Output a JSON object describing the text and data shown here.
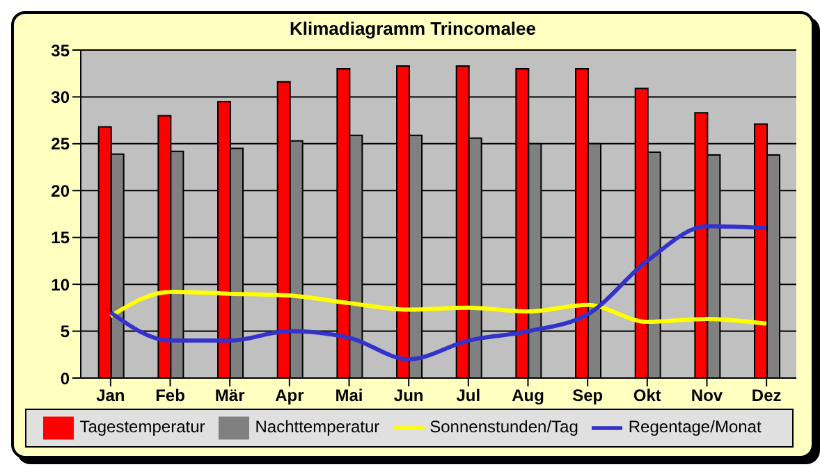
{
  "chart_data": {
    "type": "bar",
    "title": "Klimadiagramm Trincomalee",
    "categories": [
      "Jan",
      "Feb",
      "Mär",
      "Apr",
      "Mai",
      "Jun",
      "Jul",
      "Aug",
      "Sep",
      "Okt",
      "Nov",
      "Dez"
    ],
    "series": [
      {
        "name": "Tagestemperatur",
        "color": "#ff0000",
        "values": [
          26.8,
          28,
          29.5,
          31.6,
          33,
          33.3,
          33.3,
          33,
          33,
          30.9,
          28.3,
          27.1
        ]
      },
      {
        "name": "Nachttemperatur",
        "color": "#808080",
        "values": [
          23.9,
          24.2,
          24.5,
          25.3,
          25.9,
          25.9,
          25.6,
          25,
          25,
          24.1,
          23.8,
          23.8
        ]
      },
      {
        "name": "Sonnenstunden/Tag",
        "type": "line",
        "color": "#ffff00",
        "values": [
          6.6,
          9.2,
          9,
          8.8,
          8,
          7.3,
          7.5,
          7.1,
          7.8,
          6,
          6.3,
          5.8
        ]
      },
      {
        "name": "Regentage/Monat",
        "type": "line",
        "color": "#3333cc",
        "values": [
          7,
          4,
          4,
          5,
          4.3,
          2,
          4,
          5,
          6.8,
          12.5,
          16.2,
          16
        ]
      }
    ],
    "ylim": [
      0,
      35
    ],
    "yticks": [
      0,
      5,
      10,
      15,
      20,
      25,
      30,
      35
    ],
    "grid": "y",
    "legend": "bottom",
    "marker": "none"
  }
}
